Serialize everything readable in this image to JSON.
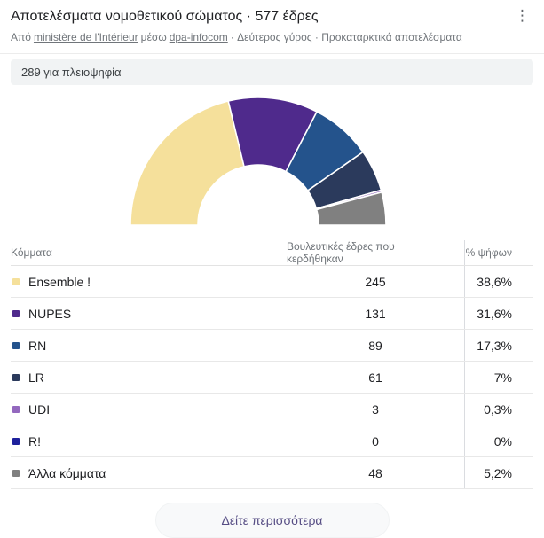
{
  "header": {
    "title": "Αποτελέσματα νομοθετικού σώματος · 577 έδρες",
    "source_prefix": "Από",
    "source_link1": "ministère de l'Intérieur",
    "source_via": "μέσω",
    "source_link2": "dpa-infocom",
    "source_suffix": "· Δεύτερος γύρος · Προκαταρκτικά αποτελέσματα",
    "menu_icon": "⋮"
  },
  "majority_note": "289 για πλειοψηφία",
  "table": {
    "headers": {
      "party": "Κόμματα",
      "seats": "Βουλευτικές έδρες που κερδήθηκαν",
      "pct": "% ψήφων"
    },
    "rows": [
      {
        "party": "Ensemble !",
        "seats": "245",
        "pct": "38,6%",
        "color": "#f5e09b"
      },
      {
        "party": "NUPES",
        "seats": "131",
        "pct": "31,6%",
        "color": "#4f2a8c"
      },
      {
        "party": "RN",
        "seats": "89",
        "pct": "17,3%",
        "color": "#24538c"
      },
      {
        "party": "LR",
        "seats": "61",
        "pct": "7%",
        "color": "#2b3a5c"
      },
      {
        "party": "UDI",
        "seats": "3",
        "pct": "0,3%",
        "color": "#9368be"
      },
      {
        "party": "R!",
        "seats": "0",
        "pct": "0%",
        "color": "#1e219c"
      },
      {
        "party": "Άλλα κόμματα",
        "seats": "48",
        "pct": "5,2%",
        "color": "#808080"
      }
    ]
  },
  "footer": {
    "button_label": "Δείτε περισσότερα"
  },
  "chart_data": {
    "type": "pie",
    "subtype": "half-donut",
    "title": "Αποτελέσματα νομοθετικού σώματος · 577 έδρες",
    "categories": [
      "Ensemble !",
      "NUPES",
      "RN",
      "LR",
      "UDI",
      "R!",
      "Άλλα κόμματα"
    ],
    "values": [
      245,
      131,
      89,
      61,
      3,
      0,
      48
    ],
    "vote_pct": [
      "38,6%",
      "31,6%",
      "17,3%",
      "7%",
      "0,3%",
      "0%",
      "5,2%"
    ],
    "colors": [
      "#f5e09b",
      "#4f2a8c",
      "#24538c",
      "#2b3a5c",
      "#9368be",
      "#1e219c",
      "#808080"
    ],
    "total": 577,
    "majority_threshold": 289,
    "start_angle_deg": 180,
    "end_angle_deg": 0,
    "legend_position": "table-below",
    "grid": false
  }
}
